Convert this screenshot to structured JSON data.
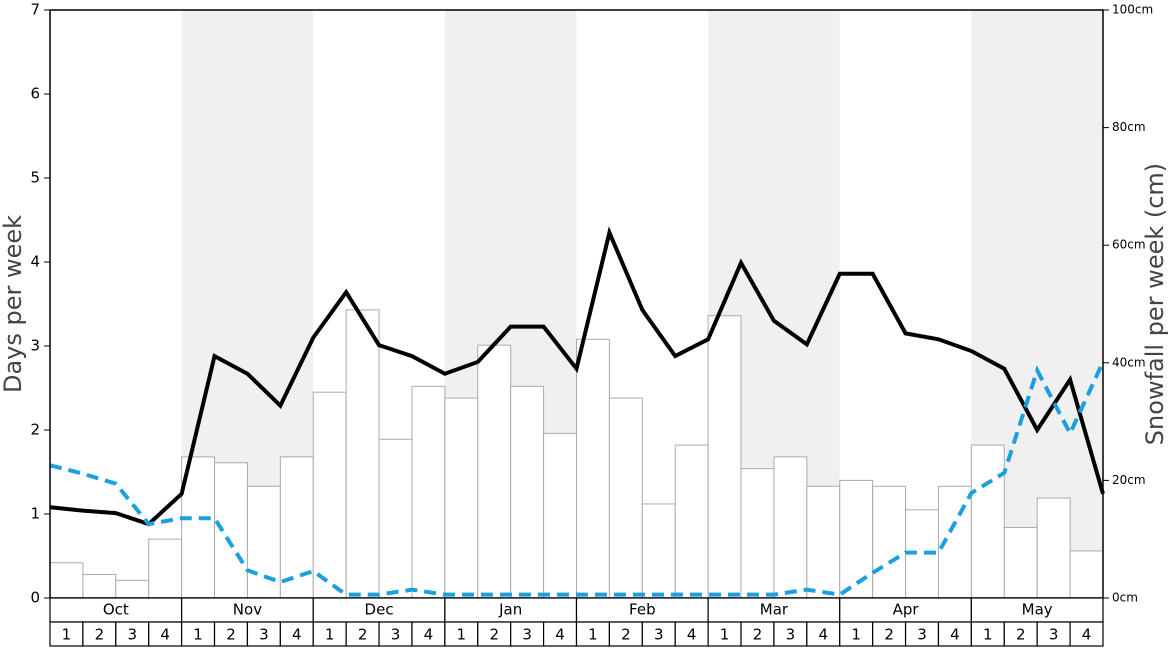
{
  "chart_data": {
    "type": "bar",
    "y_label": "Days per week",
    "y2_label": "Snowfall per week (cm)",
    "month_labels": [
      "Oct",
      "Nov",
      "Dec",
      "Jan",
      "Feb",
      "Mar",
      "Apr",
      "May"
    ],
    "categories": [
      "1",
      "2",
      "3",
      "4",
      "1",
      "2",
      "3",
      "4",
      "1",
      "2",
      "3",
      "4",
      "1",
      "2",
      "3",
      "4",
      "1",
      "2",
      "3",
      "4",
      "1",
      "2",
      "3",
      "4",
      "1",
      "2",
      "3",
      "4",
      "1",
      "2",
      "3",
      "4"
    ],
    "x": [
      0,
      1,
      2,
      3,
      4,
      5,
      6,
      7,
      8,
      9,
      10,
      11,
      12,
      13,
      14,
      15,
      16,
      17,
      18,
      19,
      20,
      21,
      22,
      23,
      24,
      25,
      26,
      27,
      28,
      29,
      30,
      31,
      32
    ],
    "xlim": [
      0,
      32
    ],
    "ylim": [
      0,
      7
    ],
    "yticks": [
      0,
      1,
      2,
      3,
      4,
      5,
      6,
      7
    ],
    "y2lim": [
      0,
      100
    ],
    "y2ticks": [
      {
        "value": 0,
        "label": "0cm"
      },
      {
        "value": 20,
        "label": "20cm"
      },
      {
        "value": 40,
        "label": "40cm"
      },
      {
        "value": 60,
        "label": "60cm"
      },
      {
        "value": 80,
        "label": "80cm"
      },
      {
        "value": 100,
        "label": "100cm"
      }
    ],
    "series": [
      {
        "type": "bar",
        "axis": "y2",
        "color": "#ffffff",
        "values": [
          6,
          4,
          3,
          10,
          24,
          23,
          19,
          24,
          35,
          49,
          27,
          36,
          34,
          43,
          36,
          28,
          44,
          34,
          16,
          26,
          48,
          22,
          24,
          19,
          20,
          19,
          15,
          19,
          26,
          12,
          17,
          8
        ]
      },
      {
        "type": "line",
        "color": "#000000",
        "values": [
          1.08,
          1.04,
          1.01,
          0.88,
          1.24,
          2.88,
          2.67,
          2.29,
          3.1,
          3.64,
          3.01,
          2.88,
          2.67,
          2.81,
          3.23,
          3.23,
          2.73,
          4.35,
          3.43,
          2.88,
          3.08,
          3.99,
          3.3,
          3.02,
          3.86,
          3.86,
          3.15,
          3.08,
          2.94,
          2.73,
          2.0,
          2.6,
          1.24
        ]
      },
      {
        "type": "line",
        "color": "#1a9fe0",
        "dashed": true,
        "values": [
          1.58,
          1.48,
          1.36,
          0.88,
          0.95,
          0.95,
          0.33,
          0.19,
          0.32,
          0.04,
          0.04,
          0.1,
          0.04,
          0.04,
          0.04,
          0.04,
          0.04,
          0.04,
          0.04,
          0.04,
          0.04,
          0.04,
          0.04,
          0.1,
          0.04,
          0.3,
          0.54,
          0.54,
          1.25,
          1.49,
          2.71,
          1.96,
          2.81
        ]
      }
    ]
  }
}
